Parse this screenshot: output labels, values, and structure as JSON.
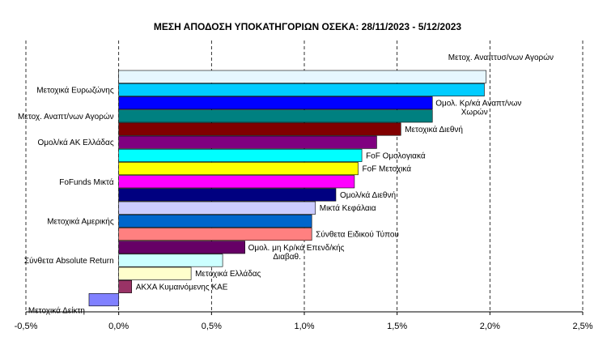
{
  "chart_data": {
    "type": "bar",
    "orientation": "horizontal",
    "title": "ΜΕΣΗ ΑΠΟΔΟΣΗ ΥΠΟΚΑΤΗΓΟΡΙΩΝ  ΟΣΕΚΑ: 28/11/2023 - 5/12/2023",
    "xlim": [
      -0.5,
      2.5
    ],
    "xticks": [
      -0.5,
      0,
      0.5,
      1,
      1.5,
      2,
      2.5
    ],
    "xtick_labels": [
      "-0,5%",
      "0,0%",
      "0,5%",
      "1,0%",
      "1,5%",
      "2,0%",
      "2,5%"
    ],
    "grid": "vertical-dashed",
    "bars": [
      {
        "label": "Μετοχ. Αναπτυσ/νων Αγορών",
        "lines": [
          "Μετοχ. Αναπτυσ/νων Αγορών"
        ],
        "value": 1.98,
        "color": "#E6F7FF",
        "side": "right-above"
      },
      {
        "label": "Μετοχικά Ευρωζώνης",
        "lines": [
          "Μετοχικά Ευρωζώνης"
        ],
        "value": 1.97,
        "color": "#00CCFF",
        "side": "left"
      },
      {
        "label": "Ομολ. Κρ/κά Αναπτ/νων Χωρών",
        "lines": [
          "Ομολ. Κρ/κά Αναπτ/νων",
          "Χωρών"
        ],
        "value": 1.69,
        "color": "#0000FF",
        "side": "right"
      },
      {
        "label": "Μετοχ. Αναπτ/νων Αγορών",
        "lines": [
          "Μετοχ. Αναπτ/νων Αγορών"
        ],
        "value": 1.69,
        "color": "#008080",
        "side": "left"
      },
      {
        "label": "Μετοχικά Διεθνή",
        "lines": [
          "Μετοχικά Διεθνή"
        ],
        "value": 1.52,
        "color": "#800000",
        "side": "right"
      },
      {
        "label": "Ομολ/κά ΑΚ Ελλάδας",
        "lines": [
          "Ομολ/κά ΑΚ Ελλάδας"
        ],
        "value": 1.39,
        "color": "#800080",
        "side": "left"
      },
      {
        "label": "FoF Ομολογιακά",
        "lines": [
          "FoF Ομολογιακά"
        ],
        "value": 1.31,
        "color": "#00FFFF",
        "side": "right"
      },
      {
        "label": "FoF Μετοχικά",
        "lines": [
          "FoF Μετοχικά"
        ],
        "value": 1.29,
        "color": "#FFFF00",
        "side": "right"
      },
      {
        "label": "FoFunds Μικτά",
        "lines": [
          "FoFunds Μικτά"
        ],
        "value": 1.27,
        "color": "#FF00FF",
        "side": "left"
      },
      {
        "label": "Ομολ/κά Διεθνή",
        "lines": [
          "Ομολ/κά Διεθνή"
        ],
        "value": 1.17,
        "color": "#000080",
        "side": "right"
      },
      {
        "label": "Μικτά Κεφάλαια",
        "lines": [
          "Μικτά Κεφάλαια"
        ],
        "value": 1.06,
        "color": "#CCCCFF",
        "side": "right"
      },
      {
        "label": "Μετοχικά Αμερικής",
        "lines": [
          "Μετοχικά Αμερικής"
        ],
        "value": 1.04,
        "color": "#0066CC",
        "side": "left"
      },
      {
        "label": "Σύνθετα Ειδικού Τύπου",
        "lines": [
          "Σύνθετα Ειδικού Τύπου"
        ],
        "value": 1.04,
        "color": "#FF8080",
        "side": "right"
      },
      {
        "label": "Ομολ. μη Κρ/κά Επενδ/κής Διαβαθ.",
        "lines": [
          "Ομολ. μη Κρ/κά Επενδ/κής",
          "Διαβαθ."
        ],
        "value": 0.68,
        "color": "#660066",
        "side": "right"
      },
      {
        "label": "Σύνθετα Absolute Return",
        "lines": [
          "Σύνθετα Absolute Return"
        ],
        "value": 0.56,
        "color": "#CCFFFF",
        "side": "left"
      },
      {
        "label": "Μετοχικά Ελλάδας",
        "lines": [
          "Μετοχικά Ελλάδας"
        ],
        "value": 0.39,
        "color": "#FFFFCC",
        "side": "right"
      },
      {
        "label": "ΑΚΧΑ Κυμαινόμενης ΚΑΕ",
        "lines": [
          "ΑΚΧΑ Κυμαινόμενης ΚΑΕ"
        ],
        "value": 0.07,
        "color": "#993366",
        "side": "right"
      },
      {
        "label": "Μετοχικά Δείκτη",
        "lines": [
          "Μετοχικά Δείκτη"
        ],
        "value": -0.16,
        "color": "#8080FF",
        "side": "left-below"
      }
    ]
  }
}
